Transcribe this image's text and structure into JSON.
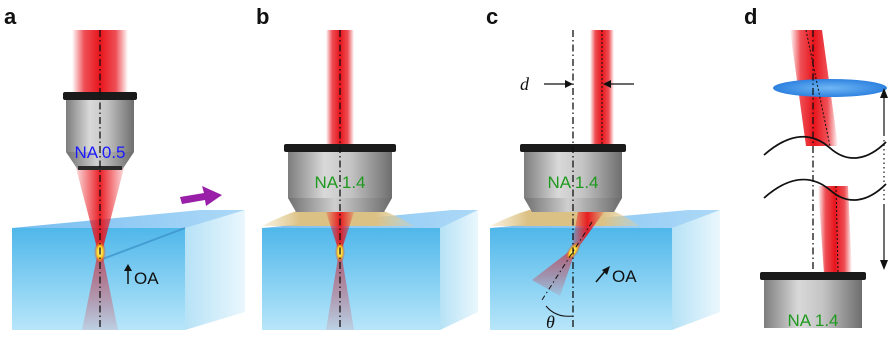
{
  "panels": {
    "a": {
      "letter": "a",
      "objective_label": "NA 0.5",
      "axis_label": "OA"
    },
    "b": {
      "letter": "b",
      "objective_label": "NA 1.4"
    },
    "c": {
      "letter": "c",
      "objective_label": "NA 1.4",
      "axis_label": "OA",
      "offset_label": "d",
      "angle_label": "θ"
    },
    "d": {
      "letter": "d",
      "objective_label": "NA 1.4"
    }
  },
  "colors": {
    "beam": "#e8141c",
    "crystal_top": "#6fb8f0",
    "crystal_front": "#59c3ec",
    "immersion_oil": "#e2c98c",
    "objective_body": "#a8a8a8",
    "objective_ring": "#1a1a1a",
    "label_blue": "#1a1aff",
    "label_green": "#1f9a1f",
    "arrow_purple": "#9a1fa8",
    "lens_blue": "#3a8ee8",
    "focus": "#ffd21a"
  },
  "icons": {
    "scan_arrow": "right-arrow-icon",
    "axis_arrow": "up-arrow-icon",
    "range_arrow": "double-headed-arrow-icon"
  }
}
